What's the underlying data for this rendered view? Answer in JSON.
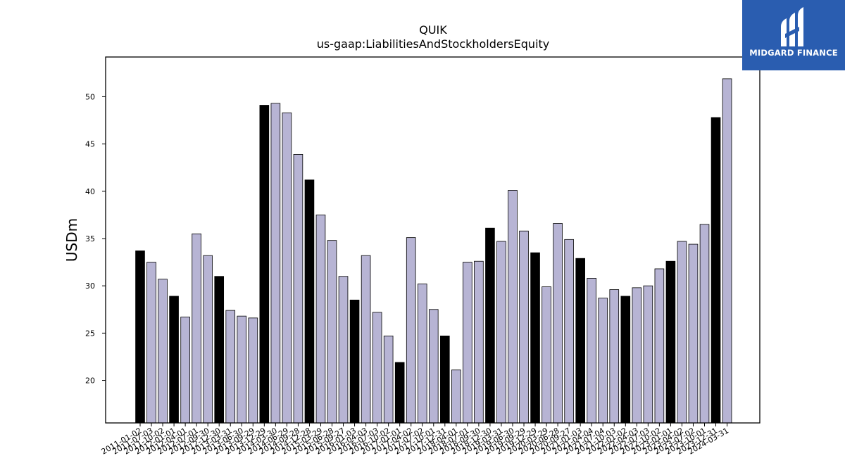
{
  "logo": {
    "text": "MIDGARD FINANCE"
  },
  "colors": {
    "bar_highlight": "#000000",
    "bar_default": "#b7b4d4",
    "bar_edge": "#000000",
    "logo_bg": "#2a5db0"
  },
  "chart_data": {
    "type": "bar",
    "title": "QUIK",
    "subtitle": "us-gaap:LiabilitiesAndStockholdersEquity",
    "xlabel": "",
    "ylabel": "USDm",
    "ylim": [
      15.5,
      54.2
    ],
    "yticks": [
      20,
      25,
      30,
      35,
      40,
      45,
      50
    ],
    "grid": false,
    "categories": [
      "2011-01-02",
      "2011-07-03",
      "2011-10-02",
      "2012-01-01",
      "2012-04-01",
      "2012-07-01",
      "2012-09-30",
      "2012-12-30",
      "2013-03-31",
      "2013-06-30",
      "2013-09-29",
      "2013-12-29",
      "2014-03-30",
      "2014-06-29",
      "2014-09-28",
      "2014-12-28",
      "2015-03-29",
      "2015-06-28",
      "2015-09-27",
      "2016-01-03",
      "2016-04-03",
      "2016-07-03",
      "2016-10-02",
      "2017-01-01",
      "2017-04-02",
      "2017-07-02",
      "2017-10-01",
      "2017-12-31",
      "2018-04-01",
      "2018-07-01",
      "2018-09-30",
      "2018-12-30",
      "2019-03-31",
      "2019-06-30",
      "2019-09-29",
      "2019-12-29",
      "2020-03-29",
      "2020-06-28",
      "2020-09-27",
      "2021-01-03",
      "2021-04-04",
      "2021-07-04",
      "2021-10-03",
      "2022-01-02",
      "2022-04-03",
      "2022-07-03",
      "2022-10-02",
      "2023-01-01",
      "2023-04-02",
      "2023-07-02",
      "2023-10-01",
      "2023-12-31",
      "2024-03-31"
    ],
    "values": [
      33.7,
      32.5,
      30.7,
      28.9,
      26.7,
      35.5,
      33.2,
      31.0,
      27.4,
      26.8,
      26.6,
      49.1,
      49.3,
      48.3,
      43.9,
      41.2,
      37.5,
      34.8,
      31.0,
      28.5,
      33.2,
      27.2,
      24.7,
      21.9,
      35.1,
      30.2,
      27.5,
      24.7,
      21.1,
      32.5,
      32.6,
      36.1,
      34.7,
      40.1,
      35.8,
      33.5,
      29.9,
      36.6,
      34.9,
      32.9,
      30.8,
      28.7,
      29.6,
      28.9,
      29.8,
      30.0,
      31.8,
      32.6,
      34.7,
      34.4,
      36.5,
      47.8,
      51.9
    ],
    "highlighted": [
      true,
      false,
      false,
      true,
      false,
      false,
      false,
      true,
      false,
      false,
      false,
      true,
      false,
      false,
      false,
      true,
      false,
      false,
      false,
      true,
      false,
      false,
      false,
      true,
      false,
      false,
      false,
      true,
      false,
      false,
      false,
      true,
      false,
      false,
      false,
      true,
      false,
      false,
      false,
      true,
      false,
      false,
      false,
      true,
      false,
      false,
      false,
      true,
      false,
      false,
      false,
      true,
      false
    ]
  }
}
